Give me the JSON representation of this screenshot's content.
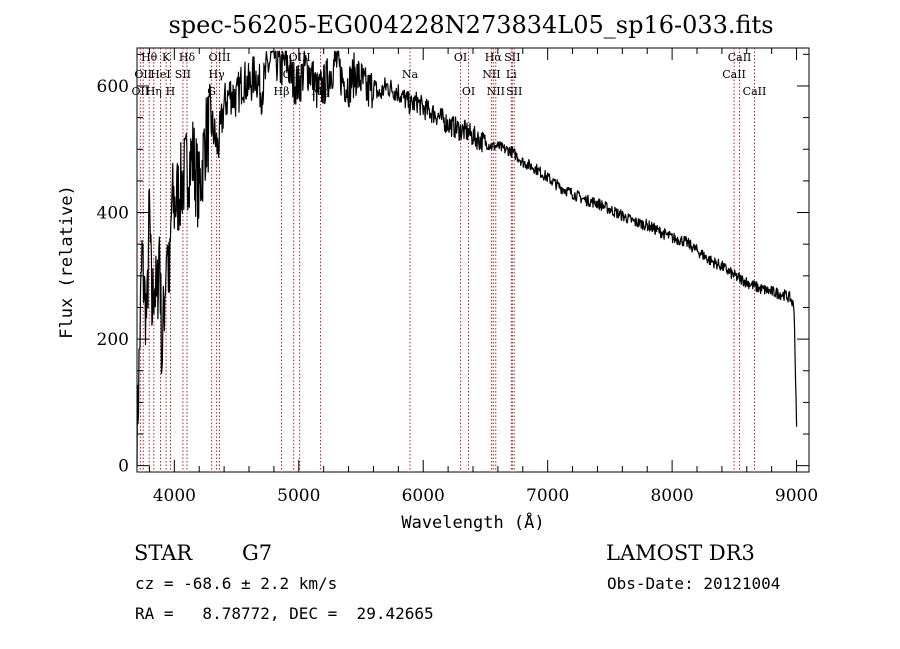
{
  "chart_data": {
    "type": "line",
    "title": "spec-56205-EG004228N273834L05_sp16-033.fits",
    "xlabel": "Wavelength (Å)",
    "ylabel": "Flux (relative)",
    "xlim": [
      3700,
      9100
    ],
    "ylim": [
      -10,
      660
    ],
    "xticks": [
      4000,
      5000,
      6000,
      7000,
      8000,
      9000
    ],
    "yticks": [
      0,
      200,
      400,
      600
    ],
    "grid": false,
    "line_color": "#000000",
    "marker_color": "#b22222",
    "series": [
      {
        "x": [
          3700,
          3720,
          3740,
          3760,
          3780,
          3800,
          3820,
          3840,
          3860,
          3880,
          3900,
          3920,
          3940,
          3960,
          3980,
          4000,
          4050,
          4100,
          4150,
          4200,
          4250,
          4300,
          4350,
          4400,
          4450,
          4500,
          4550,
          4600,
          4650,
          4700,
          4750,
          4800,
          4850,
          4900,
          4950,
          5000,
          5050,
          5100,
          5150,
          5200,
          5250,
          5300,
          5350,
          5400,
          5450,
          5500,
          5550,
          5600,
          5650,
          5700,
          5750,
          5800,
          5850,
          5900,
          5950,
          6000,
          6050,
          6100,
          6150,
          6200,
          6250,
          6300,
          6350,
          6400,
          6450,
          6500,
          6550,
          6600,
          6650,
          6700,
          6750,
          6800,
          6900,
          7000,
          7100,
          7200,
          7300,
          7400,
          7500,
          7600,
          7700,
          7800,
          7900,
          8000,
          8100,
          8200,
          8300,
          8400,
          8500,
          8600,
          8700,
          8800,
          8900,
          8950,
          8980,
          9000
        ],
        "y": [
          40,
          180,
          330,
          270,
          230,
          410,
          240,
          300,
          250,
          360,
          170,
          260,
          360,
          280,
          420,
          410,
          440,
          470,
          490,
          430,
          520,
          540,
          500,
          570,
          590,
          580,
          610,
          600,
          620,
          590,
          630,
          650,
          625,
          640,
          610,
          600,
          630,
          620,
          590,
          600,
          620,
          640,
          610,
          600,
          620,
          610,
          590,
          600,
          585,
          600,
          595,
          590,
          580,
          570,
          575,
          565,
          560,
          555,
          548,
          540,
          535,
          530,
          528,
          520,
          515,
          510,
          505,
          505,
          500,
          498,
          490,
          480,
          470,
          455,
          440,
          430,
          420,
          415,
          405,
          395,
          385,
          380,
          370,
          360,
          355,
          340,
          325,
          315,
          300,
          290,
          280,
          275,
          270,
          265,
          250,
          60
        ]
      }
    ],
    "lines": [
      {
        "x": 3727,
        "label": "OII",
        "row": 2
      },
      {
        "x": 3750,
        "label": "OII",
        "row": 1
      },
      {
        "x": 3798,
        "label": "Hθ",
        "row": 0
      },
      {
        "x": 3835,
        "label": "Hη",
        "row": 2
      },
      {
        "x": 3889,
        "label": "HeI",
        "row": 1
      },
      {
        "x": 3934,
        "label": "K",
        "row": 0
      },
      {
        "x": 3969,
        "label": "H",
        "row": 2
      },
      {
        "x": 4069,
        "label": "SII",
        "row": 1
      },
      {
        "x": 4102,
        "label": "Hδ",
        "row": 0
      },
      {
        "x": 4300,
        "label": "G",
        "row": 2
      },
      {
        "x": 4340,
        "label": "Hγ",
        "row": 1
      },
      {
        "x": 4363,
        "label": "OIII",
        "row": 0
      },
      {
        "x": 4861,
        "label": "Hβ",
        "row": 2
      },
      {
        "x": 4959,
        "label": "OIII",
        "row": 1
      },
      {
        "x": 5007,
        "label": "OIII",
        "row": 0
      },
      {
        "x": 5175,
        "label": "Mg",
        "row": 2
      },
      {
        "x": 5894,
        "label": "Na",
        "row": 1
      },
      {
        "x": 6300,
        "label": "OI",
        "row": 0
      },
      {
        "x": 6364,
        "label": "OI",
        "row": 2
      },
      {
        "x": 6548,
        "label": "NII",
        "row": 1
      },
      {
        "x": 6563,
        "label": "Hα",
        "row": 0
      },
      {
        "x": 6583,
        "label": "NII",
        "row": 2
      },
      {
        "x": 6708,
        "label": "Li",
        "row": 1
      },
      {
        "x": 6716,
        "label": "SII",
        "row": 0
      },
      {
        "x": 6731,
        "label": "SII",
        "row": 2
      },
      {
        "x": 8498,
        "label": "CaII",
        "row": 1
      },
      {
        "x": 8542,
        "label": "CaII",
        "row": 0
      },
      {
        "x": 8662,
        "label": "CaII",
        "row": 2
      }
    ]
  },
  "info": {
    "class": "STAR",
    "subclass": "G7",
    "survey": "LAMOST DR3",
    "cz": "cz = -68.6 ± 2.2 km/s",
    "obsdate": "Obs-Date: 20121004",
    "radec": "RA =   8.78772, DEC =  29.42665"
  }
}
